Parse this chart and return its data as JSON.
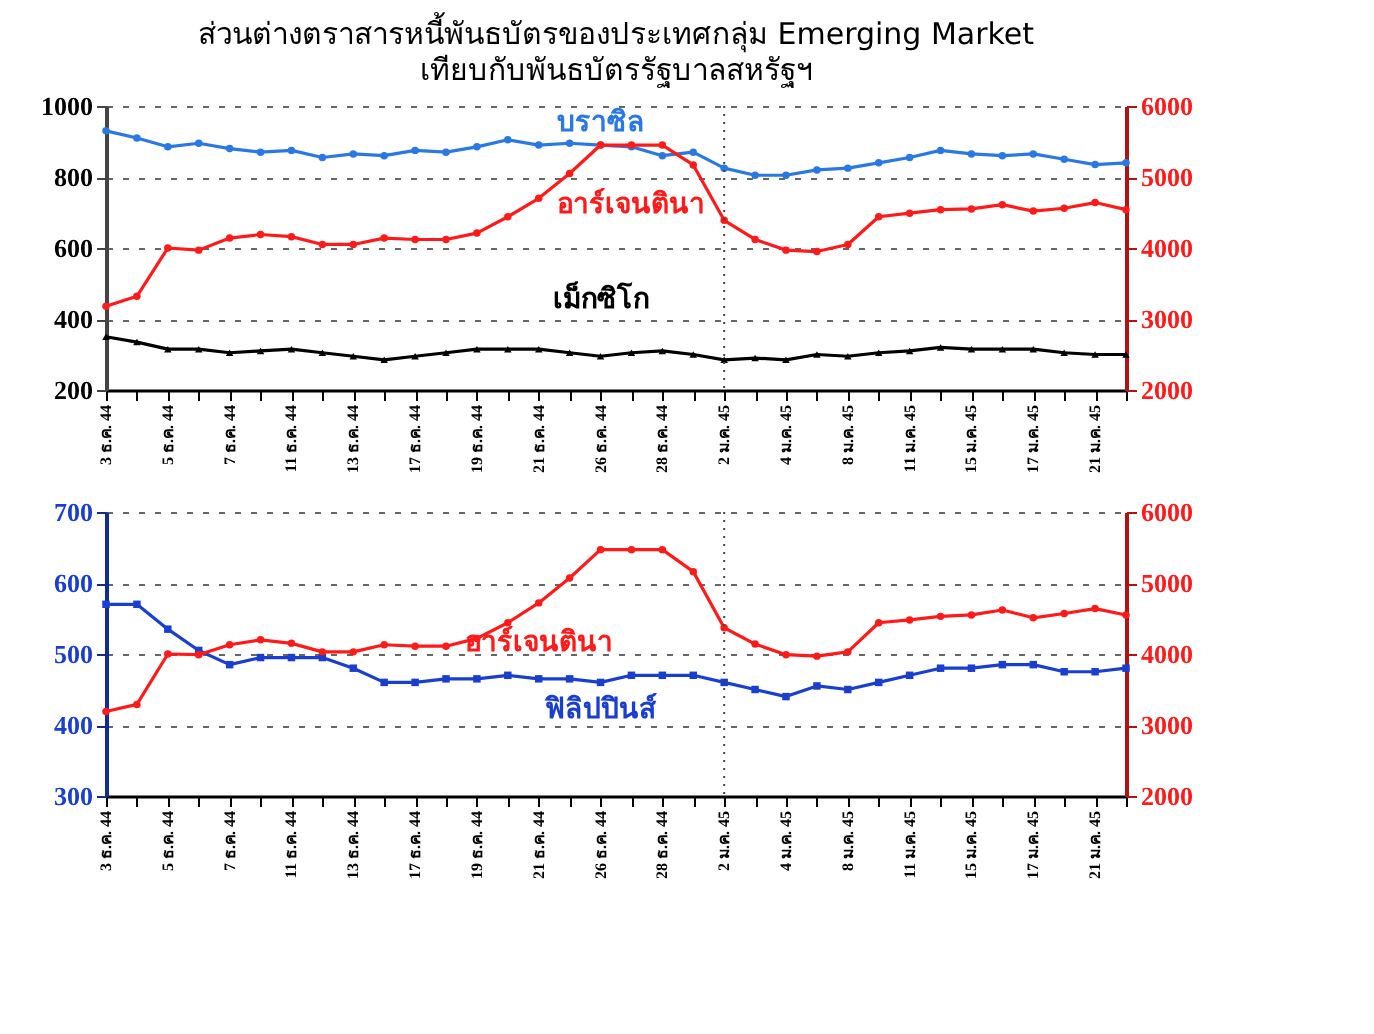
{
  "chart_data": [
    {
      "type": "line",
      "title": "ส่วนต่างตราสารหนี้พันธบัตรของประเทศกลุ่ม Emerging Market",
      "subtitle": "เทียบกับพันธบัตรรัฐบาลสหรัฐฯ",
      "categories": [
        "3 ธ.ค. 44",
        null,
        "5 ธ.ค. 44",
        null,
        "7 ธ.ค. 44",
        null,
        "11 ธ.ค. 44",
        null,
        "13 ธ.ค. 44",
        null,
        "17 ธ.ค. 44",
        null,
        "19 ธ.ค. 44",
        null,
        "21 ธ.ค. 44",
        null,
        "26 ธ.ค. 44",
        null,
        "28 ธ.ค. 44",
        null,
        "2 ม.ค. 45",
        null,
        "4 ม.ค. 45",
        null,
        "8 ม.ค. 45",
        null,
        "11 ม.ค. 45",
        null,
        "15 ม.ค. 45",
        null,
        "17 ม.ค. 45",
        null,
        "21 ม.ค. 45",
        null
      ],
      "series": [
        {
          "name": "บราซิล",
          "color": "#2a78e4",
          "marker": "circle",
          "values": [
            930,
            910,
            885,
            895,
            880,
            870,
            875,
            855,
            865,
            860,
            875,
            870,
            885,
            905,
            890,
            895,
            890,
            885,
            860,
            870,
            825,
            805,
            805,
            820,
            825,
            840,
            855,
            875,
            865,
            860,
            865,
            850,
            835,
            840
          ]
        },
        {
          "name": "อาร์เจนตินา",
          "color": "#ff1a1a",
          "marker": "circle",
          "axis": "y2",
          "values": [
            3180,
            3320,
            4000,
            3970,
            4140,
            4190,
            4160,
            4050,
            4050,
            4140,
            4120,
            4120,
            4210,
            4440,
            4700,
            5050,
            5450,
            5450,
            5450,
            5170,
            4390,
            4120,
            3970,
            3950,
            4050,
            4440,
            4490,
            4540,
            4550,
            4610,
            4520,
            4560,
            4640,
            4540
          ]
        },
        {
          "name": "เม็กซิโก",
          "color": "#000000",
          "marker": "triangle",
          "values": [
            350,
            335,
            315,
            315,
            305,
            310,
            315,
            305,
            295,
            285,
            295,
            305,
            315,
            315,
            315,
            305,
            295,
            305,
            310,
            300,
            285,
            290,
            285,
            300,
            295,
            305,
            310,
            320,
            315,
            315,
            315,
            305,
            300,
            300
          ]
        }
      ],
      "ylim": [
        200,
        1000
      ],
      "yticks": [
        200,
        400,
        600,
        800,
        1000
      ],
      "y2lim": [
        2000,
        6000
      ],
      "y2ticks": [
        2000,
        3000,
        4000,
        5000,
        6000
      ],
      "ref_lines": [
        {
          "axis": "x",
          "value": "2 ม.ค. 45",
          "line_style": "dotted"
        }
      ],
      "grid": "y",
      "line_style": "solid"
    },
    {
      "type": "line",
      "categories": [
        "3 ธ.ค. 44",
        null,
        "5 ธ.ค. 44",
        null,
        "7 ธ.ค. 44",
        null,
        "11 ธ.ค. 44",
        null,
        "13 ธ.ค. 44",
        null,
        "17 ธ.ค. 44",
        null,
        "19 ธ.ค. 44",
        null,
        "21 ธ.ค. 44",
        null,
        "26 ธ.ค. 44",
        null,
        "28 ธ.ค. 44",
        null,
        "2 ม.ค. 45",
        null,
        "4 ม.ค. 45",
        null,
        "8 ม.ค. 45",
        null,
        "11 ม.ค. 45",
        null,
        "15 ม.ค. 45",
        null,
        "17 ม.ค. 45",
        null,
        "21 ม.ค. 45",
        null
      ],
      "series": [
        {
          "name": "อาร์เจนตินา",
          "color": "#ff1a1a",
          "marker": "circle",
          "axis": "y2",
          "values": [
            3190,
            3290,
            4000,
            3990,
            4130,
            4200,
            4150,
            4030,
            4030,
            4130,
            4110,
            4110,
            4220,
            4440,
            4720,
            5070,
            5470,
            5470,
            5470,
            5160,
            4370,
            4140,
            3990,
            3970,
            4030,
            4440,
            4480,
            4530,
            4550,
            4620,
            4510,
            4570,
            4640,
            4550
          ]
        },
        {
          "name": "ฟิลิปปินส์",
          "color": "#1a3fd0",
          "marker": "square",
          "values": [
            570,
            570,
            535,
            505,
            485,
            495,
            495,
            495,
            480,
            460,
            460,
            465,
            465,
            470,
            465,
            465,
            460,
            470,
            470,
            470,
            460,
            450,
            440,
            455,
            450,
            460,
            470,
            480,
            480,
            485,
            485,
            475,
            475,
            480
          ]
        }
      ],
      "ylim": [
        300,
        700
      ],
      "yticks": [
        300,
        400,
        500,
        600,
        700
      ],
      "y2lim": [
        2000,
        6000
      ],
      "y2ticks": [
        2000,
        3000,
        4000,
        5000,
        6000
      ],
      "ref_lines": [
        {
          "axis": "x",
          "value": "2 ม.ค. 45",
          "line_style": "dotted"
        }
      ],
      "grid": "y",
      "line_style": "solid"
    }
  ]
}
